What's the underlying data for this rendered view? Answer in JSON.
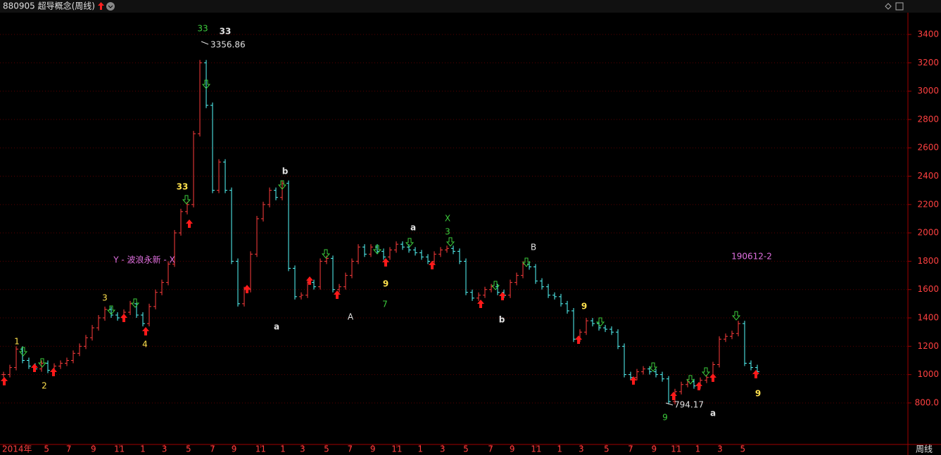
{
  "header": {
    "title": "880905 超导概念(周线)"
  },
  "chart_data": {
    "type": "bar",
    "period_label": "周线",
    "values": [
      1000,
      1050,
      1180,
      1100,
      1060,
      1040,
      1080,
      1030,
      1060,
      1080,
      1100,
      1150,
      1200,
      1260,
      1330,
      1400,
      1460,
      1420,
      1400,
      1440,
      1500,
      1420,
      1360,
      1480,
      1580,
      1650,
      1780,
      2000,
      2150,
      2200,
      2700,
      3200,
      2900,
      2300,
      2500,
      2300,
      1800,
      1500,
      1600,
      1850,
      2100,
      2200,
      2300,
      2250,
      2350,
      1750,
      1550,
      1560,
      1650,
      1620,
      1800,
      1820,
      1600,
      1620,
      1700,
      1800,
      1900,
      1850,
      1900,
      1870,
      1830,
      1880,
      1920,
      1900,
      1880,
      1860,
      1830,
      1800,
      1850,
      1880,
      1890,
      1870,
      1800,
      1580,
      1540,
      1560,
      1600,
      1620,
      1580,
      1560,
      1650,
      1700,
      1780,
      1760,
      1660,
      1620,
      1560,
      1550,
      1500,
      1450,
      1250,
      1300,
      1380,
      1360,
      1330,
      1320,
      1300,
      1200,
      1000,
      980,
      1020,
      1040,
      1020,
      1000,
      970,
      810,
      880,
      930,
      950,
      920,
      960,
      980,
      1070,
      1250,
      1270,
      1290,
      1360,
      1080,
      1050,
      1020
    ],
    "up_color": "#ff3c3c",
    "down_color": "#54fcfc",
    "grid_color": "#5a0000",
    "ylim": [
      517,
      3534
    ],
    "yticks": [
      {
        "value": 800,
        "label": "800.0"
      },
      1000,
      1200,
      1400,
      1600,
      1800,
      2000,
      2200,
      2400,
      2600,
      2800,
      3000,
      3200,
      3400
    ],
    "grid": true,
    "xticks": [
      {
        "value": 0,
        "label": "2014年"
      },
      {
        "value": 6.8,
        "label": "5"
      },
      {
        "value": 10.3,
        "label": "7"
      },
      {
        "value": 14.2,
        "label": "9"
      },
      {
        "value": 18.3,
        "label": "11"
      },
      {
        "value": 22,
        "label": "1"
      },
      {
        "value": 25.4,
        "label": "3"
      },
      {
        "value": 29.2,
        "label": "5"
      },
      {
        "value": 33,
        "label": "7"
      },
      {
        "value": 36.4,
        "label": "9"
      },
      {
        "value": 40.6,
        "label": "11"
      },
      {
        "value": 44.1,
        "label": "1"
      },
      {
        "value": 47.2,
        "label": "3"
      },
      {
        "value": 51,
        "label": "5"
      },
      {
        "value": 54.7,
        "label": "7"
      },
      {
        "value": 58.3,
        "label": "9"
      },
      {
        "value": 62.1,
        "label": "11"
      },
      {
        "value": 65.8,
        "label": "1"
      },
      {
        "value": 69.3,
        "label": "3"
      },
      {
        "value": 73,
        "label": "5"
      },
      {
        "value": 76.9,
        "label": "7"
      },
      {
        "value": 80.3,
        "label": "9"
      },
      {
        "value": 84.1,
        "label": "11"
      },
      {
        "value": 87.8,
        "label": "1"
      },
      {
        "value": 91.2,
        "label": "3"
      },
      {
        "value": 95.2,
        "label": "5"
      },
      {
        "value": 99,
        "label": "7"
      },
      {
        "value": 102.7,
        "label": "9"
      },
      {
        "value": 106.2,
        "label": "11"
      },
      {
        "value": 109.6,
        "label": "1"
      },
      {
        "value": 113.1,
        "label": "3"
      },
      {
        "value": 116.7,
        "label": "5"
      }
    ],
    "high": 3356.86,
    "low": 794.17,
    "annotations": [
      "1",
      "2",
      "3",
      "4",
      "33",
      "33",
      "33",
      "Y - 波浪永新 - X",
      "b",
      "a",
      "A",
      "9",
      "7",
      "a",
      "X",
      "3",
      "B",
      "b",
      "9",
      "190612-2",
      "9",
      "a",
      "9"
    ]
  }
}
